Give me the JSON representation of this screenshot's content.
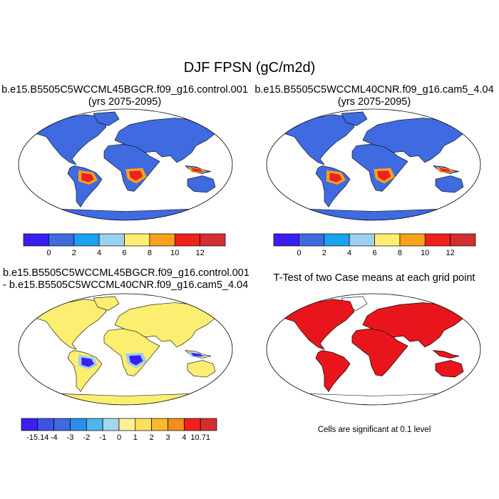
{
  "figure": {
    "title": "DJF FPSN (gC/m2d)"
  },
  "panels": {
    "top_left": {
      "title_line1": "b.e15.B5505C5WCCML45BGCR.f09_g16.control.001",
      "title_line2": "(yrs 2075-2095)"
    },
    "top_right": {
      "title_line1": "b.e15.B5505C5WCCML40CNR.f09_g16.cam5_4.04",
      "title_line2": "(yrs 2075-2095)"
    },
    "bottom_left": {
      "title_line1": "b.e15.B5505C5WCCML45BGCR.f09_g16.control.001",
      "title_line2": "- b.e15.B5505C5WCCML40CNR.f09_g16.cam5_4.04"
    },
    "bottom_right": {
      "title_line1": "T-Test of two Case means at each grid point",
      "footnote": "Cells are significant at 0.1 level"
    }
  },
  "chart_data": [
    {
      "type": "heatmap",
      "panel": "top_left",
      "projection": "Robinson",
      "title": "b.e15.B5505C5WCCML45BGCR.f09_g16.control.001",
      "subtitle": "(yrs 2075-2095)",
      "colorbar": {
        "labels": [
          "0",
          "2",
          "4",
          "6",
          "8",
          "10",
          "12"
        ],
        "colors": [
          "#3a1ff0",
          "#3f6ae0",
          "#19a3ee",
          "#9dd0ee",
          "#fbee71",
          "#f7a11c",
          "#f0211a",
          "#d32f2f"
        ]
      }
    },
    {
      "type": "heatmap",
      "panel": "top_right",
      "projection": "Robinson",
      "title": "b.e15.B5505C5WCCML40CNR.f09_g16.cam5_4.04",
      "subtitle": "(yrs 2075-2095)",
      "colorbar": {
        "labels": [
          "0",
          "2",
          "4",
          "6",
          "8",
          "10",
          "12"
        ],
        "colors": [
          "#3a1ff0",
          "#3f6ae0",
          "#19a3ee",
          "#9dd0ee",
          "#fbee71",
          "#f7a11c",
          "#f0211a",
          "#d32f2f"
        ]
      }
    },
    {
      "type": "heatmap",
      "panel": "bottom_left",
      "projection": "Robinson",
      "title": "b.e15.B5505C5WCCML45BGCR.f09_g16.control.001 - b.e15.B5505C5WCCML40CNR.f09_g16.cam5_4.04",
      "colorbar": {
        "labels": [
          "-15.14",
          "-4",
          "-3",
          "-2",
          "-1",
          "0",
          "1",
          "2",
          "3",
          "4",
          "10.71"
        ],
        "colors": [
          "#3a1ff0",
          "#3f52e6",
          "#3f6ae0",
          "#2b8ee8",
          "#4fb4ee",
          "#a3d6ee",
          "#fdf29b",
          "#fbe15c",
          "#f9b92c",
          "#f48d1d",
          "#f0211a",
          "#d32f2f"
        ]
      }
    },
    {
      "type": "heatmap",
      "panel": "bottom_right",
      "projection": "Robinson",
      "title": "T-Test of two Case means at each grid point",
      "significance_level": 0.1,
      "significant_color": "#e8161c"
    }
  ]
}
